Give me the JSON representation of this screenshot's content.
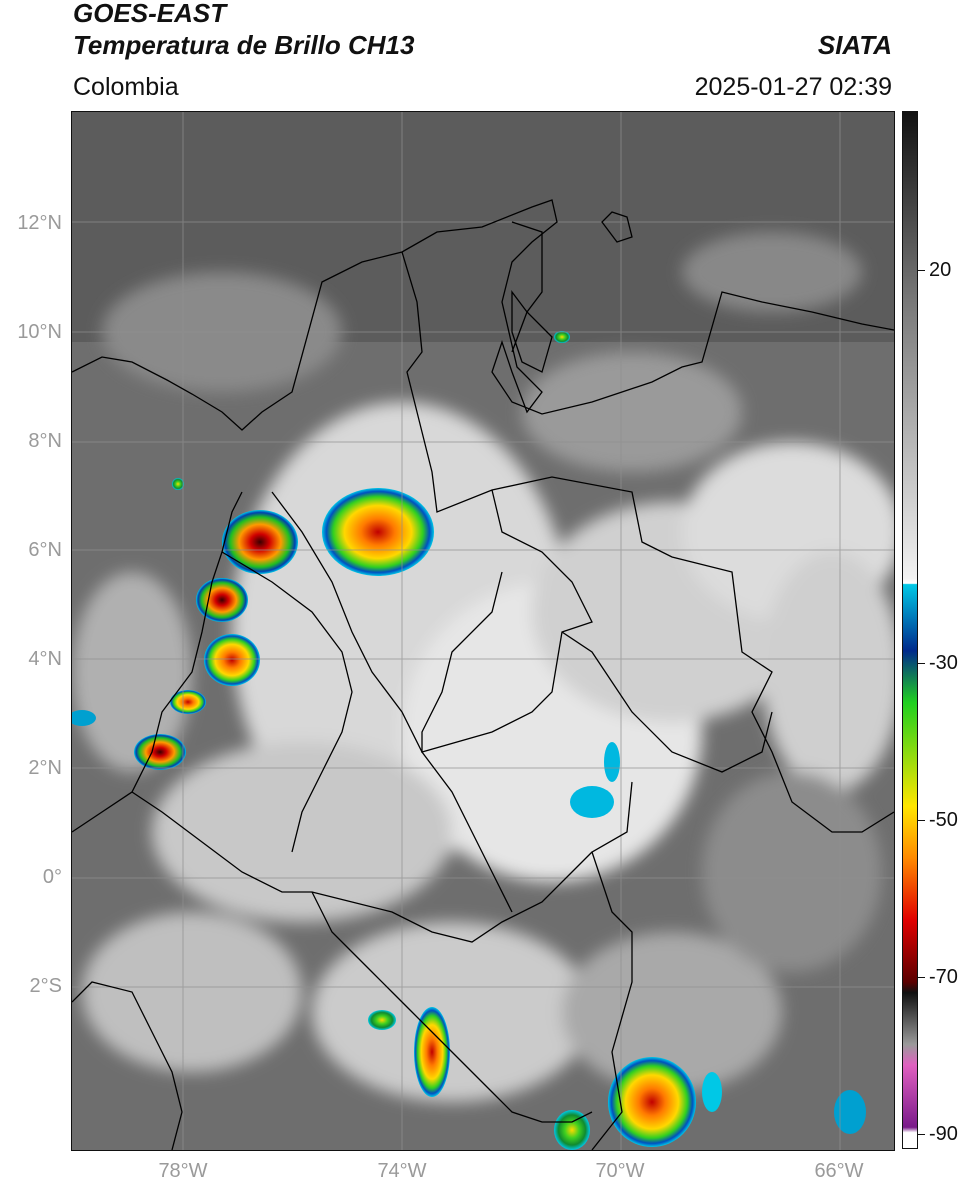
{
  "header": {
    "title_line1": "GOES-EAST",
    "title_line2": "Temperatura de Brillo CH13",
    "brand": "SIATA",
    "region": "Colombia",
    "timestamp": "2025-01-27 02:39"
  },
  "axes": {
    "latitudes": [
      "12°N",
      "10°N",
      "8°N",
      "6°N",
      "4°N",
      "2°N",
      "0°",
      "2°S"
    ],
    "longitudes": [
      "78°W",
      "74°W",
      "70°W",
      "66°W"
    ]
  },
  "colorbar": {
    "ticks": [
      "20",
      "-30",
      "-50",
      "-70",
      "-90"
    ],
    "range": [
      -92,
      38
    ],
    "colors": {
      "warm_top": "#111111",
      "warm_mid": "#777777",
      "neutral": "#f2f2f2",
      "cyan": "#00c8e6",
      "blue": "#002a8c",
      "green": "#20d020",
      "yellow": "#ffe600",
      "orange": "#ff8a00",
      "red": "#e00000",
      "dark_red": "#5a0000",
      "gray_band": "#9a9a9a",
      "pink": "#e060c0",
      "purple": "#7a1a8a"
    }
  }
}
